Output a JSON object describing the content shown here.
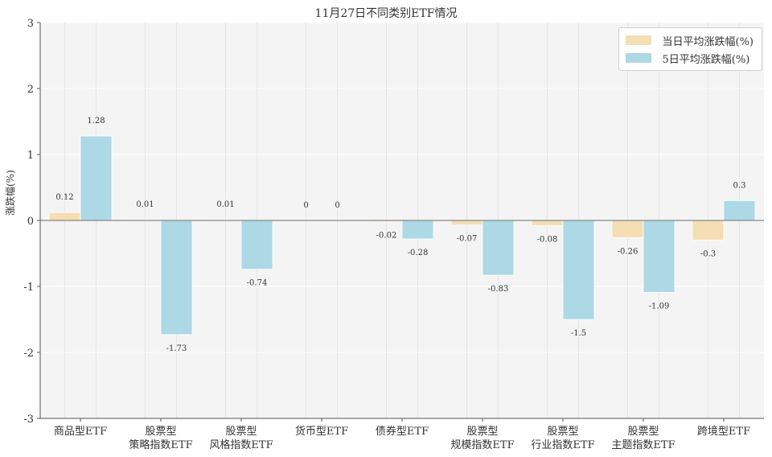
{
  "chart_data": {
    "type": "bar",
    "title": "11月27日不同类别ETF情况",
    "ylabel": "涨跌幅(%)",
    "ylim": [
      -3,
      3
    ],
    "yticks": [
      "-3",
      "-2",
      "-1",
      "0",
      "1",
      "2",
      "3"
    ],
    "grid": true,
    "legend_position": "top-right",
    "categories": [
      [
        "商品型ETF"
      ],
      [
        "股票型",
        "策略指数ETF"
      ],
      [
        "股票型",
        "风格指数ETF"
      ],
      [
        "货币型ETF"
      ],
      [
        "债券型ETF"
      ],
      [
        "股票型",
        "规模指数ETF"
      ],
      [
        "股票型",
        "行业指数ETF"
      ],
      [
        "股票型",
        "主题指数ETF"
      ],
      [
        "跨境型ETF"
      ]
    ],
    "series": [
      {
        "name": "当日平均涨跌幅(%)",
        "color": "#f5deb3",
        "values": [
          0.12,
          0.01,
          0.01,
          0.0,
          -0.02,
          -0.07,
          -0.08,
          -0.26,
          -0.3
        ]
      },
      {
        "name": "5日平均涨跌幅(%)",
        "color": "#add8e6",
        "values": [
          1.28,
          -1.73,
          -0.74,
          0.0,
          -0.28,
          -0.83,
          -1.5,
          -1.09,
          0.3
        ]
      }
    ]
  }
}
